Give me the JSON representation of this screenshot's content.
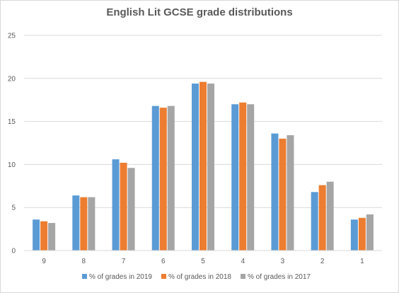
{
  "chart_data": {
    "type": "bar",
    "title": "English Lit GCSE grade distributions",
    "xlabel": "",
    "ylabel": "",
    "categories": [
      "9",
      "8",
      "7",
      "6",
      "5",
      "4",
      "3",
      "2",
      "1"
    ],
    "ylim": [
      0,
      25
    ],
    "yticks": [
      "0",
      "5",
      "10",
      "15",
      "20",
      "25"
    ],
    "grid": true,
    "legend_position": "bottom",
    "series": [
      {
        "name": "% of grades in 2019",
        "color": "#5b9bd5",
        "values": [
          3.6,
          6.4,
          10.6,
          16.8,
          19.4,
          17.0,
          13.6,
          6.8,
          3.6
        ]
      },
      {
        "name": "% of grades in 2018",
        "color": "#ed7d31",
        "values": [
          3.4,
          6.2,
          10.2,
          16.6,
          19.6,
          17.2,
          13.0,
          7.6,
          3.8
        ]
      },
      {
        "name": "% of grades in 2017",
        "color": "#a5a5a5",
        "values": [
          3.2,
          6.2,
          9.6,
          16.8,
          19.4,
          17.0,
          13.4,
          8.0,
          4.2
        ]
      }
    ]
  }
}
